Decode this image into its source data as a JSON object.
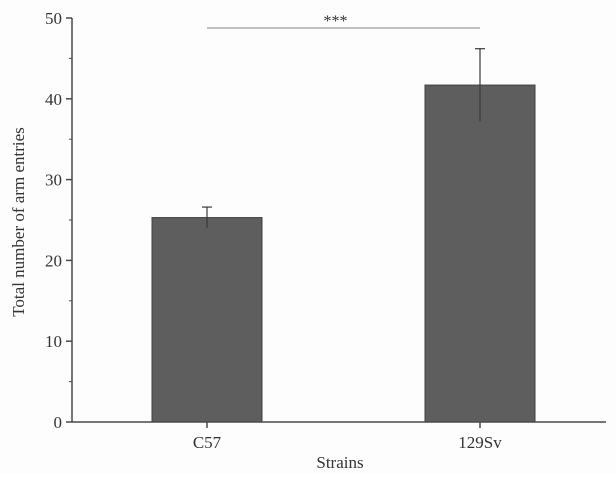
{
  "chart_data": {
    "type": "bar",
    "title": "",
    "xlabel": "Strains",
    "ylabel": "Total number of arm entries",
    "categories": [
      "C57",
      "129Sv"
    ],
    "values": [
      25.3,
      41.7
    ],
    "error": [
      1.3,
      4.5
    ],
    "ylim": [
      0,
      50
    ],
    "yticks": [
      "0",
      "10",
      "20",
      "30",
      "40",
      "50"
    ],
    "significance": {
      "label": "***",
      "between": [
        "C57",
        "129Sv"
      ]
    },
    "grid": false,
    "legend": "none"
  },
  "colors": {
    "bar_fill": "#5e5e5e",
    "bar_edge": "#3f3f3f",
    "axis": "#4a4a4a",
    "error_bar": "#3a3a3a",
    "significance_line": "#888888"
  }
}
